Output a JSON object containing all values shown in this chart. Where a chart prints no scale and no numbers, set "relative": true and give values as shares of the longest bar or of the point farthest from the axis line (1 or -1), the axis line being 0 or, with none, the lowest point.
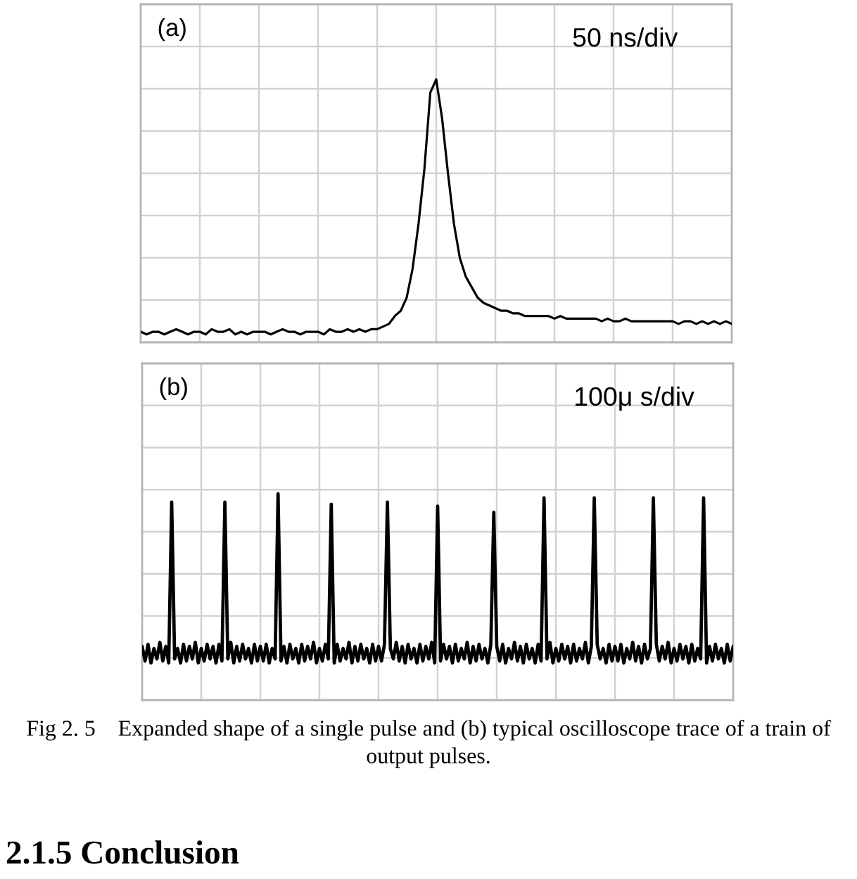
{
  "chart_data": [
    {
      "type": "line",
      "relative": true,
      "grid": true,
      "categories": [
        null,
        null,
        null,
        null,
        null,
        null,
        null,
        null,
        null,
        null,
        null,
        null,
        null,
        null,
        null,
        null,
        null,
        null,
        null,
        null,
        null,
        null,
        null,
        null,
        null,
        null,
        null,
        null,
        null,
        null,
        null,
        null,
        null,
        null,
        null,
        null,
        null,
        null,
        null,
        null,
        null,
        null,
        null,
        null,
        null,
        null,
        null,
        null,
        null,
        null,
        null,
        null,
        null,
        null,
        null,
        null,
        null,
        null,
        null,
        null,
        null,
        null,
        null,
        null,
        null,
        null,
        null,
        null,
        null,
        null,
        null,
        null,
        null,
        null,
        null,
        null,
        null,
        null,
        null,
        null,
        null,
        null,
        null,
        null,
        null,
        null,
        null,
        null,
        null,
        null,
        null,
        null,
        null,
        null,
        null,
        null,
        null,
        null,
        null,
        null,
        null
      ],
      "series": [
        {
          "color": "#000000",
          "values": [
            0.04,
            0.03,
            0.04,
            0.04,
            0.03,
            0.04,
            0.05,
            0.04,
            0.03,
            0.04,
            0.04,
            0.03,
            0.05,
            0.04,
            0.04,
            0.05,
            0.03,
            0.04,
            0.03,
            0.04,
            0.04,
            0.04,
            0.03,
            0.04,
            0.05,
            0.04,
            0.04,
            0.03,
            0.04,
            0.04,
            0.04,
            0.03,
            0.05,
            0.04,
            0.04,
            0.05,
            0.04,
            0.05,
            0.04,
            0.05,
            0.05,
            0.06,
            0.07,
            0.1,
            0.12,
            0.17,
            0.28,
            0.45,
            0.66,
            0.95,
            1.0,
            0.85,
            0.64,
            0.45,
            0.32,
            0.25,
            0.21,
            0.17,
            0.15,
            0.14,
            0.13,
            0.12,
            0.12,
            0.11,
            0.11,
            0.1,
            0.1,
            0.1,
            0.1,
            0.1,
            0.09,
            0.1,
            0.09,
            0.09,
            0.09,
            0.09,
            0.09,
            0.09,
            0.08,
            0.09,
            0.08,
            0.08,
            0.09,
            0.08,
            0.08,
            0.08,
            0.08,
            0.08,
            0.08,
            0.08,
            0.08,
            0.07,
            0.08,
            0.08,
            0.07,
            0.08,
            0.07,
            0.08,
            0.07,
            0.08,
            0.07
          ]
        }
      ],
      "annotations": [
        "(a)",
        "50 ns/div"
      ]
    },
    {
      "type": "line",
      "relative": true,
      "grid": true,
      "categories": [
        null,
        null,
        null,
        null,
        null,
        null,
        null,
        null,
        null,
        null,
        null,
        null,
        null,
        null,
        null,
        null,
        null,
        null,
        null,
        null,
        null,
        null,
        null,
        null,
        null,
        null,
        null,
        null,
        null,
        null,
        null,
        null,
        null,
        null,
        null,
        null,
        null,
        null,
        null,
        null,
        null,
        null,
        null,
        null,
        null,
        null,
        null,
        null,
        null,
        null,
        null,
        null,
        null,
        null,
        null,
        null,
        null,
        null,
        null,
        null,
        null,
        null,
        null,
        null,
        null,
        null,
        null,
        null,
        null,
        null,
        null,
        null,
        null,
        null,
        null,
        null,
        null,
        null,
        null,
        null,
        null,
        null,
        null,
        null,
        null,
        null,
        null,
        null,
        null,
        null,
        null,
        null,
        null,
        null,
        null,
        null,
        null,
        null,
        null,
        null,
        null,
        null,
        null,
        null,
        null,
        null,
        null,
        null,
        null,
        null,
        null,
        null,
        null,
        null,
        null,
        null,
        null,
        null,
        null,
        null,
        null,
        null,
        null,
        null,
        null,
        null,
        null,
        null,
        null,
        null,
        null,
        null,
        null,
        null,
        null,
        null,
        null,
        null,
        null,
        null,
        null,
        null,
        null,
        null,
        null,
        null,
        null,
        null,
        null,
        null,
        null,
        null,
        null,
        null,
        null,
        null,
        null,
        null,
        null,
        null,
        null,
        null,
        null,
        null,
        null,
        null,
        null,
        null,
        null,
        null,
        null,
        null,
        null,
        null,
        null,
        null,
        null,
        null,
        null,
        null,
        null,
        null,
        null,
        null,
        null,
        null,
        null,
        null,
        null,
        null,
        null,
        null,
        null,
        null,
        null,
        null,
        null,
        null,
        null,
        null,
        null
      ],
      "series": [
        {
          "color": "#000000",
          "values": [
            0.26,
            0.19,
            0.27,
            0.18,
            0.25,
            0.2,
            0.28,
            0.19,
            0.26,
            0.18,
            0.96,
            0.2,
            0.25,
            0.18,
            0.27,
            0.19,
            0.26,
            0.2,
            0.28,
            0.18,
            0.25,
            0.19,
            0.27,
            0.2,
            0.26,
            0.18,
            0.27,
            0.19,
            0.96,
            0.2,
            0.28,
            0.18,
            0.26,
            0.19,
            0.27,
            0.2,
            0.25,
            0.18,
            0.27,
            0.19,
            0.26,
            0.19,
            0.27,
            0.18,
            0.25,
            0.2,
            1.0,
            0.19,
            0.26,
            0.18,
            0.27,
            0.2,
            0.25,
            0.18,
            0.27,
            0.19,
            0.26,
            0.2,
            0.28,
            0.18,
            0.25,
            0.19,
            0.27,
            0.2,
            0.95,
            0.18,
            0.27,
            0.19,
            0.25,
            0.2,
            0.28,
            0.18,
            0.26,
            0.19,
            0.27,
            0.2,
            0.25,
            0.18,
            0.27,
            0.19,
            0.26,
            0.19,
            0.27,
            0.96,
            0.25,
            0.2,
            0.28,
            0.19,
            0.26,
            0.18,
            0.27,
            0.2,
            0.25,
            0.18,
            0.27,
            0.19,
            0.26,
            0.2,
            0.28,
            0.18,
            0.94,
            0.19,
            0.27,
            0.2,
            0.26,
            0.18,
            0.27,
            0.19,
            0.25,
            0.2,
            0.28,
            0.18,
            0.26,
            0.19,
            0.27,
            0.2,
            0.25,
            0.18,
            0.27,
            0.91,
            0.26,
            0.19,
            0.27,
            0.18,
            0.25,
            0.2,
            0.28,
            0.19,
            0.26,
            0.18,
            0.27,
            0.2,
            0.25,
            0.18,
            0.27,
            0.19,
            0.98,
            0.2,
            0.28,
            0.18,
            0.25,
            0.19,
            0.27,
            0.2,
            0.26,
            0.18,
            0.27,
            0.19,
            0.25,
            0.2,
            0.28,
            0.18,
            0.26,
            0.98,
            0.27,
            0.2,
            0.25,
            0.18,
            0.27,
            0.19,
            0.26,
            0.19,
            0.27,
            0.18,
            0.25,
            0.2,
            0.28,
            0.19,
            0.26,
            0.18,
            0.27,
            0.2,
            0.25,
            0.98,
            0.27,
            0.19,
            0.26,
            0.2,
            0.28,
            0.18,
            0.25,
            0.19,
            0.27,
            0.2,
            0.26,
            0.18,
            0.27,
            0.19,
            0.25,
            0.2,
            0.98,
            0.18,
            0.26,
            0.19,
            0.27,
            0.2,
            0.25,
            0.18,
            0.27,
            0.19,
            0.26
          ]
        }
      ],
      "annotations": [
        "(b)",
        "100μ s/div",
        "Fig 2. 5    Expanded shape of a single pulse and (b) typical oscilloscope trace of a train of output pulses.",
        "2.1.5 Conclusion"
      ]
    }
  ]
}
